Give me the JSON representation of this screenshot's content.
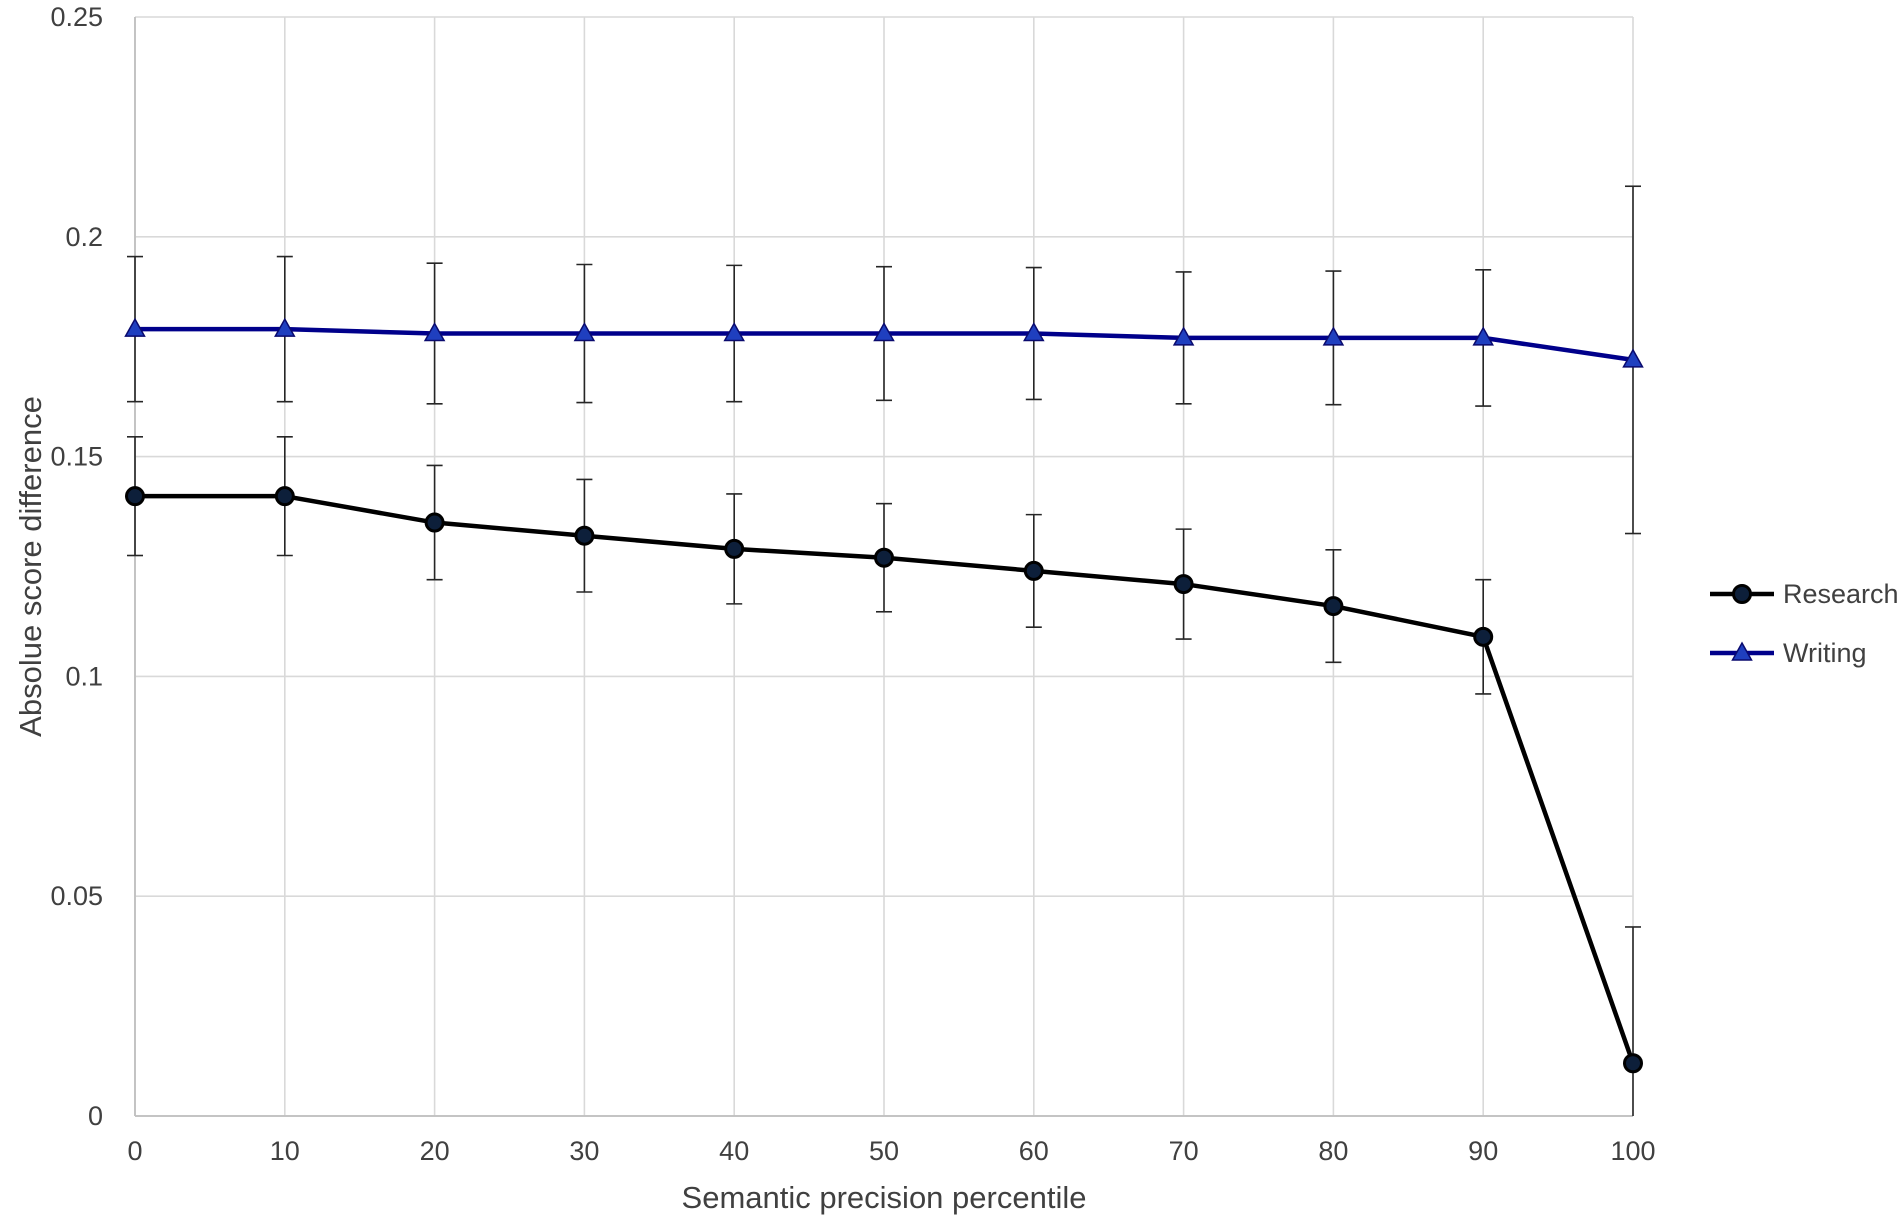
{
  "chart_data": {
    "type": "line",
    "title": "",
    "xlabel": "Semantic precision percentile",
    "ylabel": "Absolue score difference",
    "xlim": [
      0,
      100
    ],
    "ylim": [
      0,
      0.25
    ],
    "x_ticks": [
      0,
      10,
      20,
      30,
      40,
      50,
      60,
      70,
      80,
      90,
      100
    ],
    "y_ticks": [
      0,
      0.05,
      0.1,
      0.15,
      0.2,
      0.25
    ],
    "x_tick_labels": [
      "0",
      "10",
      "20",
      "30",
      "40",
      "50",
      "60",
      "70",
      "80",
      "90",
      "100"
    ],
    "y_tick_labels": [
      "0",
      "0.05",
      "0.1",
      "0.15",
      "0.2",
      "0.25"
    ],
    "grid": true,
    "legend_position": "right",
    "x": [
      0,
      10,
      20,
      30,
      40,
      50,
      60,
      70,
      80,
      90,
      100
    ],
    "series": [
      {
        "name": "Research",
        "marker": "circle",
        "color": "#000000",
        "marker_fill": "#0d1f3a",
        "values": [
          0.141,
          0.141,
          0.135,
          0.132,
          0.129,
          0.127,
          0.124,
          0.121,
          0.116,
          0.109,
          0.012
        ],
        "error": [
          0.0135,
          0.0135,
          0.013,
          0.0128,
          0.0125,
          0.0123,
          0.0128,
          0.0125,
          0.0128,
          0.013,
          0.031
        ]
      },
      {
        "name": "Writing",
        "marker": "triangle",
        "color": "#00008b",
        "marker_fill": "#1f3fbf",
        "values": [
          0.179,
          0.179,
          0.178,
          0.178,
          0.178,
          0.178,
          0.178,
          0.177,
          0.177,
          0.177,
          0.172
        ],
        "error": [
          0.0165,
          0.0165,
          0.016,
          0.0157,
          0.0155,
          0.0152,
          0.015,
          0.015,
          0.0152,
          0.0155,
          0.0395
        ]
      }
    ]
  }
}
